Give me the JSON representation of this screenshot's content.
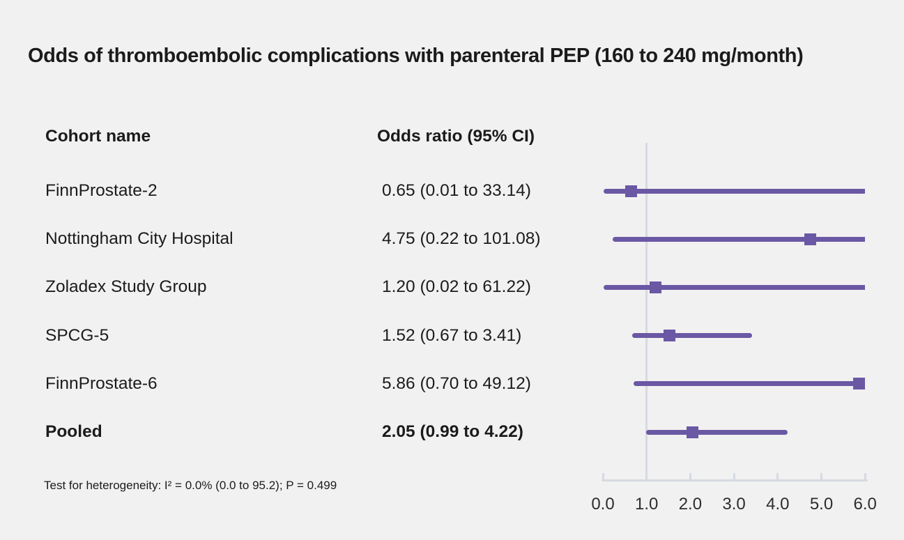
{
  "title": "Odds of thromboembolic complications with parenteral PEP (160 to 240 mg/month)",
  "columns": {
    "cohort": "Cohort name",
    "or": "Odds ratio (95% CI)"
  },
  "footnote": "Test for heterogeneity: I² = 0.0% (0.0 to 95.2); P = 0.499",
  "colors": {
    "accent": "#6a58a5",
    "axis": "#d6dae1",
    "background": "#f2f1f1",
    "text": "#1b1b1b"
  },
  "chart_data": {
    "type": "forest",
    "title": "Odds of thromboembolic complications with parenteral PEP (160 to 240 mg/month)",
    "xlabel": "",
    "ylabel": "",
    "xlim": [
      0.0,
      6.0
    ],
    "x_ticks": [
      0.0,
      1.0,
      2.0,
      3.0,
      4.0,
      5.0,
      6.0
    ],
    "reference_line": 1.0,
    "grid": false,
    "legend": "none",
    "rows": [
      {
        "cohort": "FinnProstate-2",
        "or": 0.65,
        "ci_low": 0.01,
        "ci_high": 33.14,
        "or_label": "0.65 (0.01 to 33.14)",
        "pooled": false
      },
      {
        "cohort": "Nottingham City Hospital",
        "or": 4.75,
        "ci_low": 0.22,
        "ci_high": 101.08,
        "or_label": "4.75 (0.22 to 101.08)",
        "pooled": false
      },
      {
        "cohort": "Zoladex Study Group",
        "or": 1.2,
        "ci_low": 0.02,
        "ci_high": 61.22,
        "or_label": "1.20 (0.02 to 61.22)",
        "pooled": false
      },
      {
        "cohort": "SPCG-5",
        "or": 1.52,
        "ci_low": 0.67,
        "ci_high": 3.41,
        "or_label": "1.52 (0.67 to 3.41)",
        "pooled": false
      },
      {
        "cohort": "FinnProstate-6",
        "or": 5.86,
        "ci_low": 0.7,
        "ci_high": 49.12,
        "or_label": "5.86 (0.70 to 49.12)",
        "pooled": false
      },
      {
        "cohort": "Pooled",
        "or": 2.05,
        "ci_low": 0.99,
        "ci_high": 4.22,
        "or_label": "2.05 (0.99 to 4.22)",
        "pooled": true
      }
    ],
    "footnote": "Test for heterogeneity: I² = 0.0% (0.0 to 95.2); P = 0.499"
  }
}
